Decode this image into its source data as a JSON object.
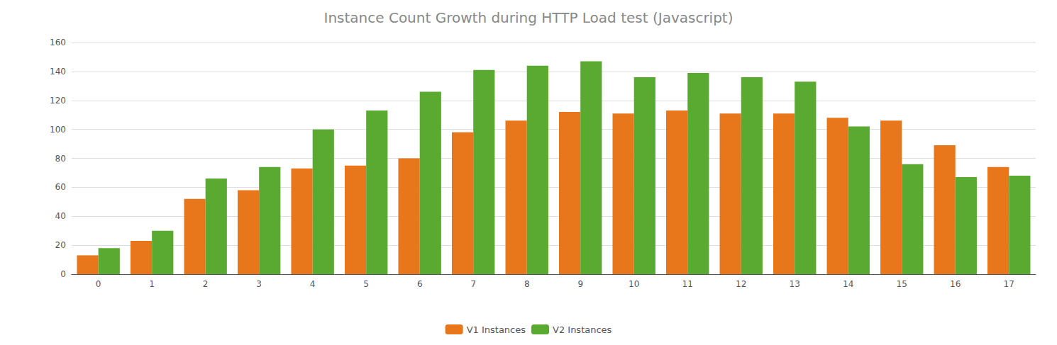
{
  "chart_data": {
    "type": "bar",
    "title": "Instance Count Growth during HTTP Load test (Javascript)",
    "categories": [
      0,
      1,
      2,
      3,
      4,
      5,
      6,
      7,
      8,
      9,
      10,
      11,
      12,
      13,
      14,
      15,
      16,
      17
    ],
    "series": [
      {
        "name": "V1 Instances",
        "color": "#E8761A",
        "values": [
          13,
          23,
          52,
          58,
          73,
          75,
          80,
          98,
          106,
          112,
          111,
          113,
          111,
          111,
          108,
          106,
          89,
          74
        ]
      },
      {
        "name": "V2 Instances",
        "color": "#5AAA32",
        "values": [
          18,
          30,
          66,
          74,
          100,
          113,
          126,
          141,
          144,
          147,
          136,
          139,
          136,
          133,
          102,
          76,
          67,
          68
        ]
      }
    ],
    "ylim": [
      0,
      160
    ],
    "yticks": [
      0,
      20,
      40,
      60,
      80,
      100,
      120,
      140,
      160
    ],
    "grid": true,
    "legend": "bottom"
  }
}
